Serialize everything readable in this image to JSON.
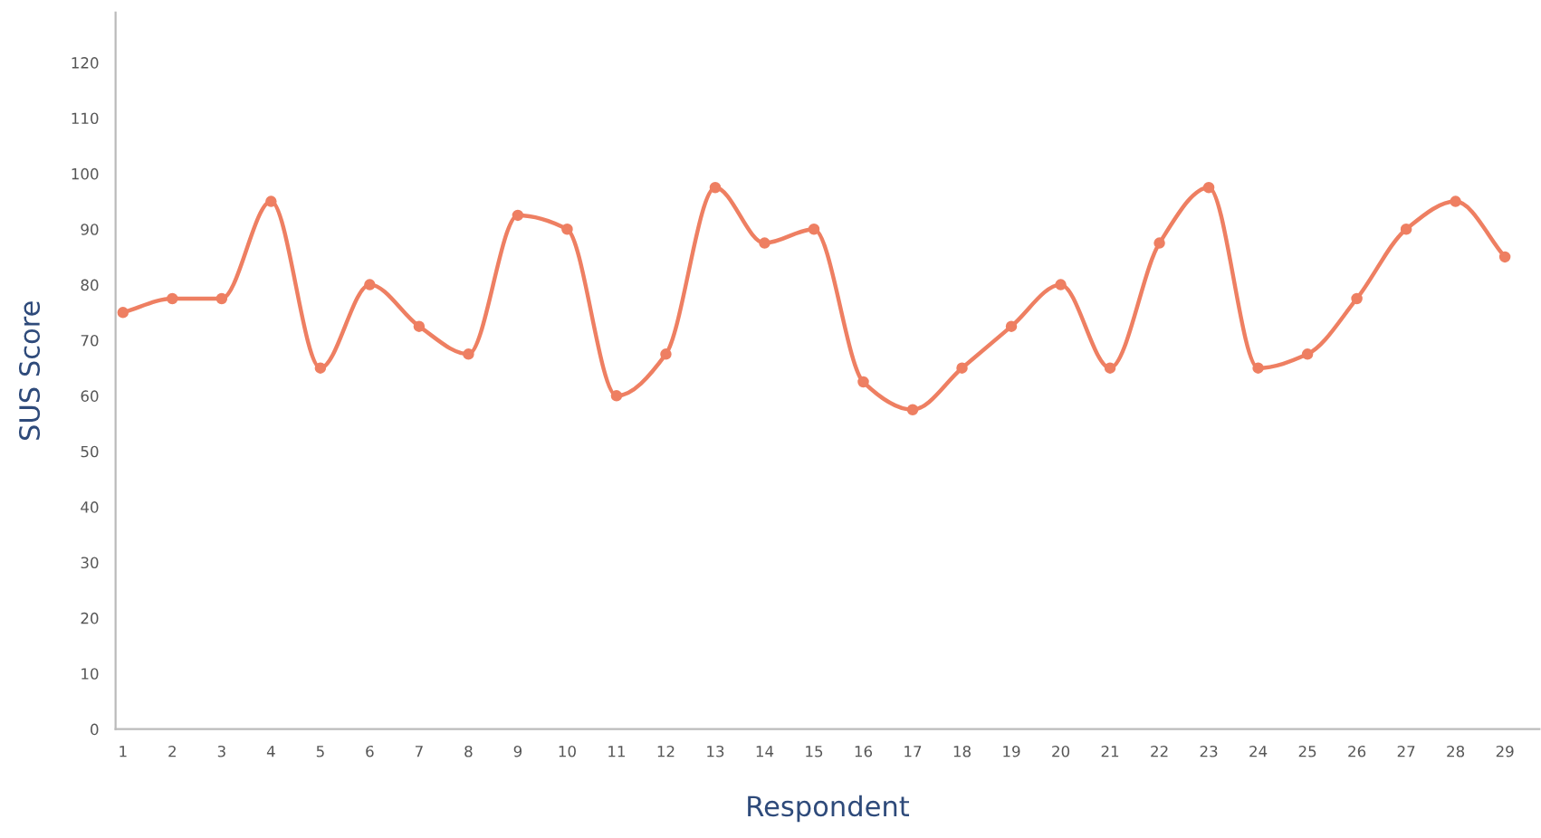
{
  "chart_data": {
    "type": "line",
    "xlabel": "Respondent",
    "ylabel": "SUS Score",
    "x": [
      1,
      2,
      3,
      4,
      5,
      6,
      7,
      8,
      9,
      10,
      11,
      12,
      13,
      14,
      15,
      16,
      17,
      18,
      19,
      20,
      21,
      22,
      23,
      24,
      25,
      26,
      27,
      28,
      29
    ],
    "series": [
      {
        "color": "#ee7f62",
        "values": [
          75,
          77.5,
          77.5,
          95,
          65,
          80,
          72.5,
          67.5,
          92.5,
          90,
          60,
          67.5,
          97.5,
          87.5,
          90,
          62.5,
          57.5,
          65,
          72.5,
          80,
          65,
          87.5,
          97.5,
          65,
          67.5,
          77.5,
          90,
          95,
          85
        ]
      }
    ],
    "xlim": [
      0.85,
      29.7
    ],
    "xticks": [
      1,
      2,
      3,
      4,
      5,
      6,
      7,
      8,
      9,
      10,
      11,
      12,
      13,
      14,
      15,
      16,
      17,
      18,
      19,
      20,
      21,
      22,
      23,
      24,
      25,
      26,
      27,
      28,
      29
    ],
    "ylim": [
      0,
      129
    ],
    "yticks": [
      0,
      10,
      20,
      30,
      40,
      50,
      60,
      70,
      80,
      90,
      100,
      110,
      120
    ],
    "grid": false,
    "legend": false,
    "marker": "circle",
    "line_style": "solid"
  }
}
